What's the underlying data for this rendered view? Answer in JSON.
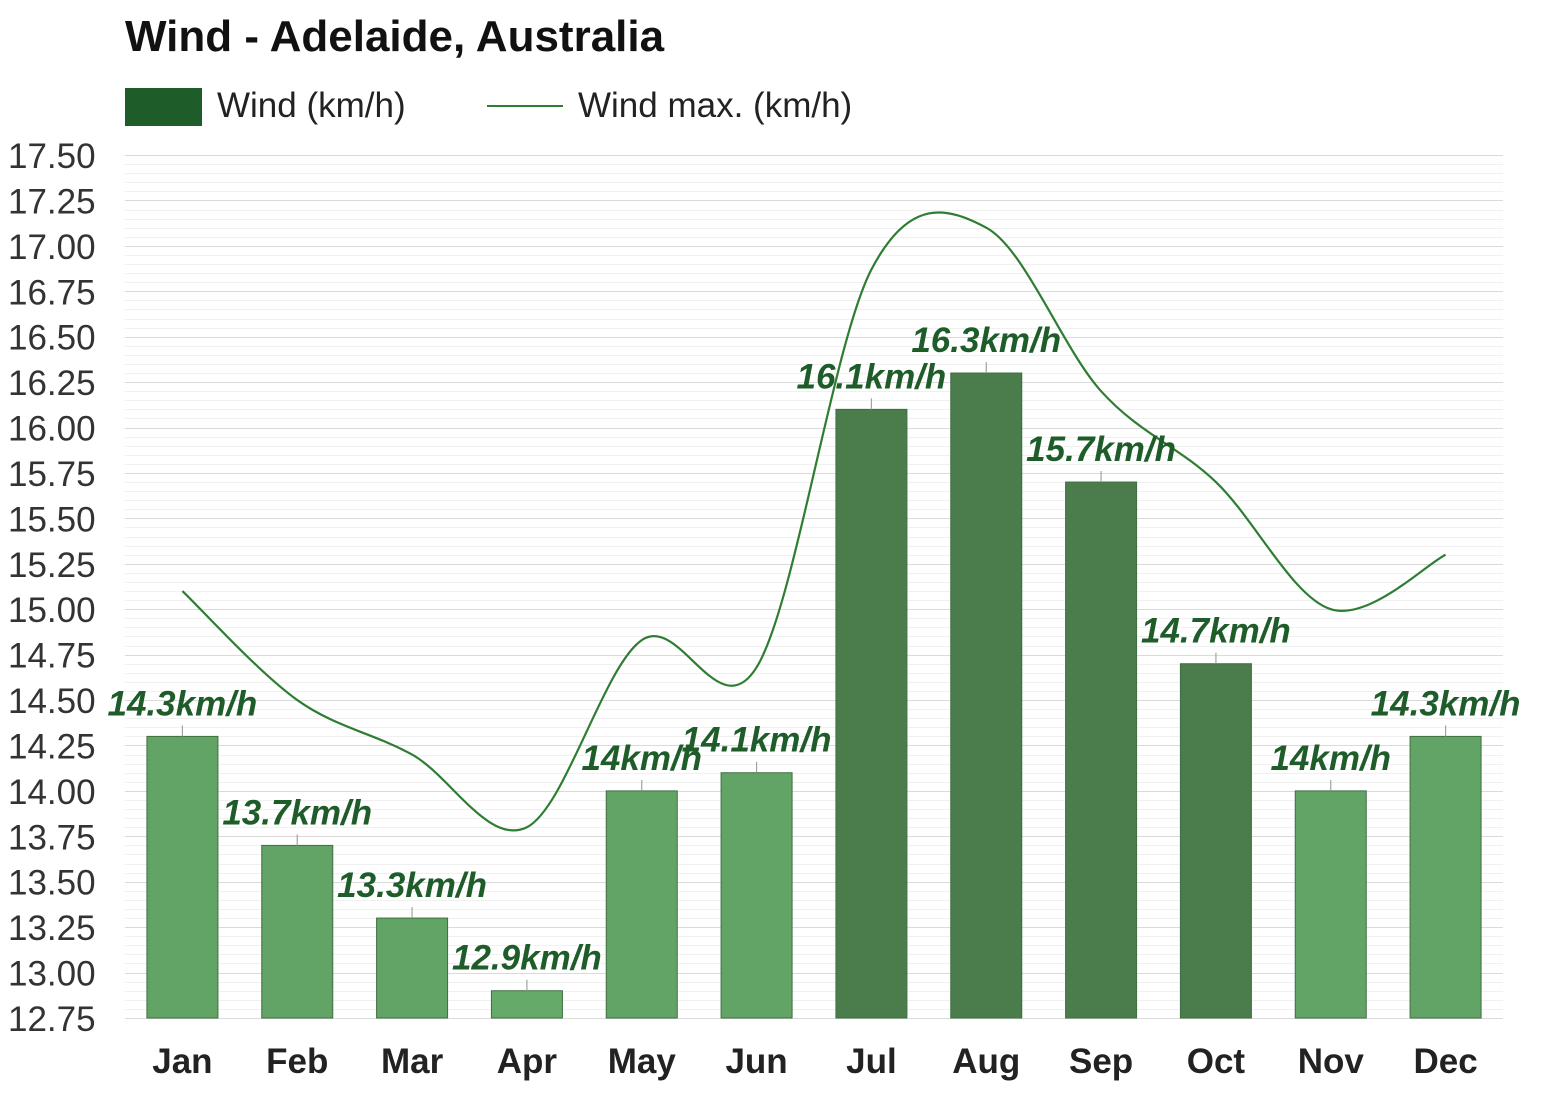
{
  "chart_data": {
    "type": "bar",
    "title": "Wind - Adelaide, Australia",
    "categories": [
      "Jan",
      "Feb",
      "Mar",
      "Apr",
      "May",
      "Jun",
      "Jul",
      "Aug",
      "Sep",
      "Oct",
      "Nov",
      "Dec"
    ],
    "series": [
      {
        "name": "Wind (km/h)",
        "type": "bar",
        "values": [
          14.3,
          13.7,
          13.3,
          12.9,
          14.0,
          14.1,
          16.1,
          16.3,
          15.7,
          14.7,
          14.0,
          14.3
        ],
        "labels": [
          "14.3km/h",
          "13.7km/h",
          "13.3km/h",
          "12.9km/h",
          "14km/h",
          "14.1km/h",
          "16.1km/h",
          "16.3km/h",
          "15.7km/h",
          "14.7km/h",
          "14km/h",
          "14.3km/h"
        ]
      },
      {
        "name": "Wind max. (km/h)",
        "type": "line",
        "values": [
          15.1,
          14.5,
          14.2,
          13.8,
          14.83,
          14.68,
          16.87,
          17.1,
          16.2,
          15.7,
          15.0,
          15.3
        ]
      }
    ],
    "ylim": [
      12.75,
      17.5
    ],
    "yticks": [
      "17.50",
      "17.25",
      "17.00",
      "16.75",
      "16.50",
      "16.25",
      "16.00",
      "15.75",
      "15.50",
      "15.25",
      "15.00",
      "14.75",
      "14.50",
      "14.25",
      "14.00",
      "13.75",
      "13.50",
      "13.25",
      "13.00",
      "12.75"
    ],
    "xlabel": "",
    "ylabel": "",
    "grid": true,
    "legend_position": "top-left",
    "colors": {
      "bar_dark": "#4a7d4b",
      "bar_light": "#62a466",
      "line": "#2e7d32",
      "label": "#1e5c2a",
      "legend_bar": "#1e5c2a"
    }
  }
}
